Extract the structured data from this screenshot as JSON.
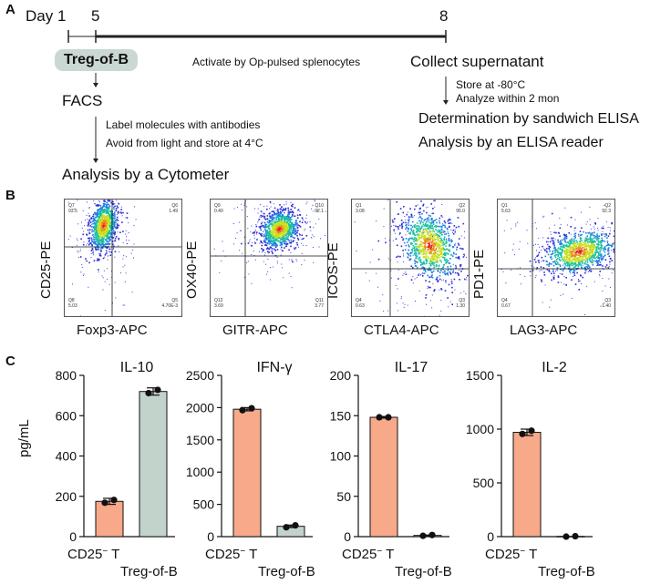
{
  "panel_a": {
    "letter": "A",
    "timeline": {
      "day_label": "Day 1",
      "day5": "5",
      "day8": "8"
    },
    "treg_label": "Treg-of-B",
    "facs_label": "FACS",
    "activate_label": "Activate by Op-pulsed splenocytes",
    "collect_label": "Collect supernatant",
    "store_note": "Store at -80°C",
    "analyze_note": "Analyze within 2 mon",
    "elisa_line1": "Determination by sandwich ELISA",
    "elisa_line2": "Analysis by an ELISA reader",
    "label_note1": "Label molecules with antibodies",
    "label_note2": "Avoid from light and store at 4°C",
    "cytometer_label": "Analysis by a Cytometer"
  },
  "panel_b": {
    "letter": "B",
    "plots": [
      {
        "y_label": "CD25-PE",
        "x_label": "Foxp3-APC",
        "quadrants": {
          "q1_name": "Q7",
          "q1_val": "93.5",
          "q2_name": "Q6",
          "q2_val": "1.49",
          "q3_name": "Q8",
          "q3_val": "5.03",
          "q4_name": "Q5",
          "q4_val": "4.70E-3"
        }
      },
      {
        "y_label": "OX40-PE",
        "x_label": "GITR-APC",
        "quadrants": {
          "q1_name": "Q9",
          "q1_val": "0.40",
          "q2_name": "Q10",
          "q2_val": "92.1",
          "q3_name": "Q12",
          "q3_val": "3.69",
          "q4_name": "Q11",
          "q4_val": "3.77"
        }
      },
      {
        "y_label": "ICOS-PE",
        "x_label": "CTLA4-APC",
        "quadrants": {
          "q1_name": "Q1",
          "q1_val": "3.08",
          "q2_name": "Q2",
          "q2_val": "95.0",
          "q3_name": "Q4",
          "q3_val": "0.63",
          "q4_name": "Q3",
          "q4_val": "1.30"
        }
      },
      {
        "y_label": "PD1-PE",
        "x_label": "LAG3-APC",
        "quadrants": {
          "q1_name": "Q1",
          "q1_val": "5.63",
          "q2_name": "Q2",
          "q2_val": "92.3",
          "q3_name": "Q4",
          "q3_val": "0.67",
          "q4_name": "Q3",
          "q4_val": "1.40"
        }
      }
    ]
  },
  "panel_c": {
    "letter": "C",
    "ylabel": "pg/mL",
    "category_a": "CD25",
    "category_a_sup": "−",
    "category_a_suffix": " T",
    "category_b": "Treg-of-B",
    "colors": {
      "cd25": "#f7a98a",
      "treg": "#c2d3cc"
    }
  },
  "chart_data": [
    {
      "type": "bar",
      "title": "IL-10",
      "ylabel": "pg/mL",
      "categories": [
        "CD25− T",
        "Treg-of-B"
      ],
      "values": [
        175,
        720
      ],
      "points": [
        [
          168,
          182
        ],
        [
          712,
          728
        ]
      ],
      "errors": [
        15,
        18
      ],
      "ylim": [
        0,
        800
      ],
      "ticks": [
        0,
        200,
        400,
        600,
        800
      ]
    },
    {
      "type": "bar",
      "title": "IFN-γ",
      "ylabel": "",
      "categories": [
        "CD25− T",
        "Treg-of-B"
      ],
      "values": [
        1975,
        160
      ],
      "points": [
        [
          1960,
          1990
        ],
        [
          145,
          175
        ]
      ],
      "errors": [
        25,
        20
      ],
      "ylim": [
        0,
        2500
      ],
      "ticks": [
        0,
        500,
        1000,
        1500,
        2000,
        2500
      ]
    },
    {
      "type": "bar",
      "title": "IL-17",
      "ylabel": "",
      "categories": [
        "CD25− T",
        "Treg-of-B"
      ],
      "values": [
        148,
        1.5
      ],
      "points": [
        [
          148,
          148
        ],
        [
          1,
          2
        ]
      ],
      "errors": [
        1,
        0.5
      ],
      "ylim": [
        0,
        200
      ],
      "ticks": [
        0,
        50,
        100,
        150,
        200
      ]
    },
    {
      "type": "bar",
      "title": "IL-2",
      "ylabel": "",
      "categories": [
        "CD25− T",
        "Treg-of-B"
      ],
      "values": [
        970,
        2
      ],
      "points": [
        [
          955,
          985
        ],
        [
          0,
          4
        ]
      ],
      "errors": [
        30,
        0
      ],
      "ylim": [
        0,
        1500
      ],
      "ticks": [
        0,
        500,
        1000,
        1500
      ]
    }
  ]
}
